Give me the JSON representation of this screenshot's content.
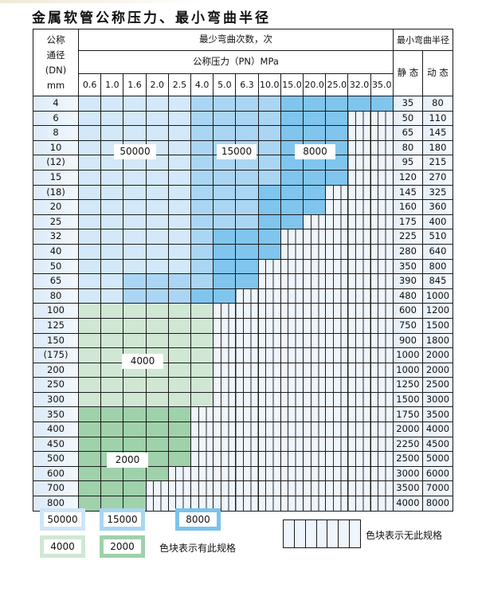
{
  "title": "金属软管公称压力、最小弯曲半径",
  "header": {
    "dn_label_lines": [
      "公称",
      "通径",
      "(DN)",
      "mm"
    ],
    "cycles_label": "最少弯曲次数，次",
    "pressure_label": "公称压力（PN）MPa",
    "radius_label": "最小弯曲半径",
    "static_label": "静 态",
    "dynamic_label": "动 态",
    "pressures": [
      "0.6",
      "1.0",
      "1.6",
      "2.0",
      "2.5",
      "4.0",
      "5.0",
      "6.3",
      "10.0",
      "15.0",
      "20.0",
      "25.0",
      "32.0",
      "35.0"
    ]
  },
  "tier_colors": {
    "L": "#d3e8f8",
    "M": "#abd6f3",
    "D": "#80c5ed",
    "G": "#d0e7d4",
    "g": "#9fd1aa",
    "-": "none"
  },
  "rows": [
    {
      "dn": "4",
      "static": "35",
      "dynamic": "80",
      "cells": "LLLLLMMMMDDDDD"
    },
    {
      "dn": "6",
      "static": "50",
      "dynamic": "110",
      "cells": "LLLLLMMMMDDD--"
    },
    {
      "dn": "8",
      "static": "65",
      "dynamic": "145",
      "cells": "LLLLLMMMMDDD--"
    },
    {
      "dn": "10",
      "static": "80",
      "dynamic": "180",
      "cells": "LLLLLMMMMDDD--"
    },
    {
      "dn": "(12)",
      "static": "95",
      "dynamic": "215",
      "cells": "LLLLLMMMMDDD--"
    },
    {
      "dn": "15",
      "static": "120",
      "dynamic": "270",
      "cells": "LLLLLMMMMDDD--"
    },
    {
      "dn": "(18)",
      "static": "145",
      "dynamic": "325",
      "cells": "LLLLLMMMDDD---"
    },
    {
      "dn": "20",
      "static": "160",
      "dynamic": "360",
      "cells": "LLLLLMMMDDD---"
    },
    {
      "dn": "25",
      "static": "175",
      "dynamic": "400",
      "cells": "LLLLLMMMDD----"
    },
    {
      "dn": "32",
      "static": "225",
      "dynamic": "510",
      "cells": "LLLLLMDDD-----"
    },
    {
      "dn": "40",
      "static": "280",
      "dynamic": "640",
      "cells": "LLLLLMDDD-----"
    },
    {
      "dn": "50",
      "static": "350",
      "dynamic": "800",
      "cells": "LLLLLMDD------"
    },
    {
      "dn": "65",
      "static": "390",
      "dynamic": "845",
      "cells": "LLMMMMDD------"
    },
    {
      "dn": "80",
      "static": "480",
      "dynamic": "1000",
      "cells": "LLMMMDD-------"
    },
    {
      "dn": "100",
      "static": "600",
      "dynamic": "1200",
      "cells": "GGGGGG--------"
    },
    {
      "dn": "125",
      "static": "750",
      "dynamic": "1500",
      "cells": "GGGGGG--------"
    },
    {
      "dn": "150",
      "static": "900",
      "dynamic": "1800",
      "cells": "GGGGGG--------"
    },
    {
      "dn": "(175)",
      "static": "1000",
      "dynamic": "2000",
      "cells": "GGGGGG--------"
    },
    {
      "dn": "200",
      "static": "1000",
      "dynamic": "2000",
      "cells": "GGGGGG--------"
    },
    {
      "dn": "250",
      "static": "1250",
      "dynamic": "2500",
      "cells": "GGGGGG--------"
    },
    {
      "dn": "300",
      "static": "1500",
      "dynamic": "3000",
      "cells": "GGGGGG--------"
    },
    {
      "dn": "350",
      "static": "1750",
      "dynamic": "3500",
      "cells": "ggggg---------"
    },
    {
      "dn": "400",
      "static": "2000",
      "dynamic": "4000",
      "cells": "ggggg---------"
    },
    {
      "dn": "450",
      "static": "2250",
      "dynamic": "4500",
      "cells": "ggggg---------"
    },
    {
      "dn": "500",
      "static": "2500",
      "dynamic": "5000",
      "cells": "ggggg---------"
    },
    {
      "dn": "600",
      "static": "3000",
      "dynamic": "6000",
      "cells": "gggg----------"
    },
    {
      "dn": "700",
      "static": "3500",
      "dynamic": "7000",
      "cells": "ggg-----------"
    },
    {
      "dn": "800",
      "static": "4000",
      "dynamic": "8000",
      "cells": "ggg-----------"
    }
  ],
  "region_labels": {
    "light_blue": "50000",
    "medium_blue": "15000",
    "dark_blue": "8000",
    "light_green": "4000",
    "dark_green": "2000"
  },
  "legend": {
    "items": [
      {
        "label": "50000",
        "border": "#cfe5f7"
      },
      {
        "label": "15000",
        "border": "#a9d5f2"
      },
      {
        "label": "8000",
        "border": "#7cc3ec"
      },
      {
        "label": "4000",
        "border": "#d0e7d4"
      },
      {
        "label": "2000",
        "border": "#9fd1aa"
      }
    ],
    "has_spec_text": "色块表示有此规格",
    "no_spec_text": "色块表示无此规格"
  }
}
